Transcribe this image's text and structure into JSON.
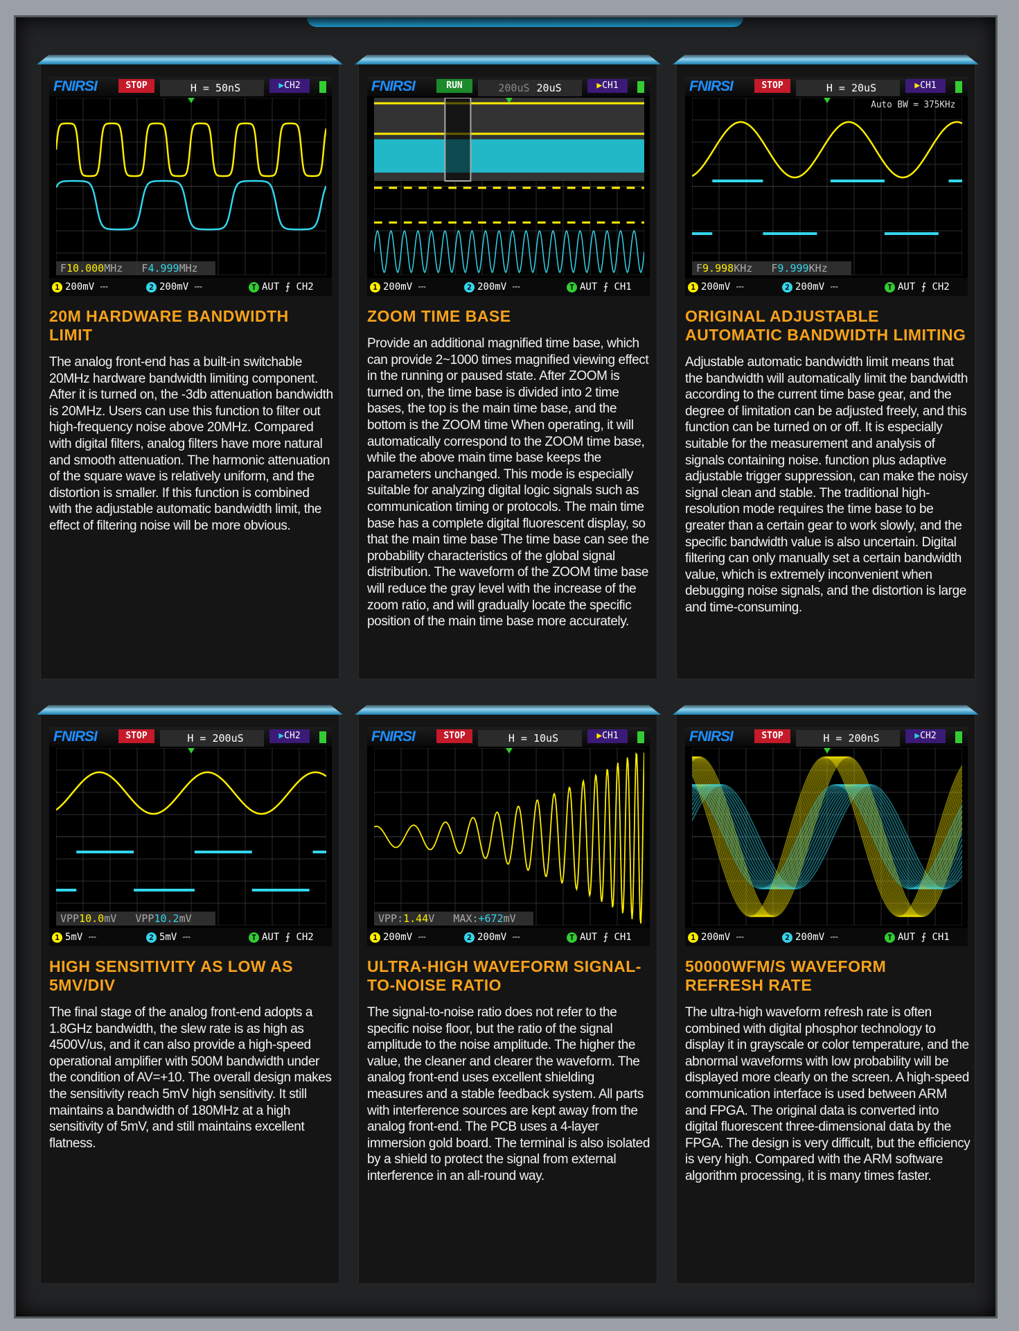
{
  "colors": {
    "accent": "#f7a21b",
    "ch1": "#ffee00",
    "ch2": "#33d6ec",
    "logo": "#1e8fff",
    "stop": "#c41a2a",
    "run": "#1c8a2a"
  },
  "panels": [
    {
      "scope": {
        "logo": "FNIRSI",
        "status": "STOP",
        "timebase": "H = 50nS",
        "timebase_main": "",
        "channel": "CH2",
        "meas1_label": "F",
        "meas1_value": "10.000",
        "meas1_unit": "MHz",
        "meas2_label": "F",
        "meas2_value": "4.999",
        "meas2_unit": "MHz",
        "ch1_scale": "200mV ⎓",
        "ch2_scale": "200mV ⎓",
        "trigger": "AUT ⨍ CH2",
        "note": ""
      },
      "title": "20M hardware bandwidth limit",
      "body": "The analog front-end has a built-in switchable 20MHz hardware bandwidth limiting component. After it is turned on, the -3db attenuation bandwidth is 20MHz. Users can use this function to filter out high-frequency noise above 20MHz. Compared with digital filters, analog filters have more natural and smooth attenuation. The harmonic attenuation of the square wave is relatively uniform, and the distortion is smaller. If this function is combined with the adjustable automatic bandwidth limit, the effect of filtering noise will be more obvious."
    },
    {
      "scope": {
        "logo": "FNIRSI",
        "status": "RUN",
        "timebase": "20uS",
        "timebase_main": "200uS",
        "channel": "CH1",
        "meas1_label": "",
        "meas1_value": "",
        "meas1_unit": "",
        "meas2_label": "",
        "meas2_value": "",
        "meas2_unit": "",
        "ch1_scale": "200mV ⎓",
        "ch2_scale": "200mV ⎓",
        "trigger": "AUT ⨍ CH1",
        "note": ""
      },
      "title": "Zoom time base",
      "body": "Provide an additional magnified time base, which can provide 2~1000 times magnified viewing effect in the running or paused state. After ZOOM is turned on, the time base is divided into 2 time bases, the top is the main time base, and the bottom is the ZOOM time When operating, it will automatically correspond to the ZOOM time base, while the above main time base keeps the parameters unchanged. This mode is especially suitable for analyzing digital logic signals such as communication timing or protocols. The main time base has a complete digital fluorescent display, so that the main time base The time base can see the probability characteristics of the global signal distribution. The waveform of the ZOOM time base will reduce the gray level with the increase of the zoom ratio, and will gradually locate the specific position of the main time base more accurately."
    },
    {
      "scope": {
        "logo": "FNIRSI",
        "status": "STOP",
        "timebase": "H = 20uS",
        "timebase_main": "",
        "channel": "CH1",
        "meas1_label": "F",
        "meas1_value": "9.998",
        "meas1_unit": "KHz",
        "meas2_label": "F",
        "meas2_value": "9.999",
        "meas2_unit": "KHz",
        "ch1_scale": "200mV ⎓",
        "ch2_scale": "200mV ⎓",
        "trigger": "AUT ⨍ CH2",
        "note": "Auto BW = 375KHz"
      },
      "title": "Original adjustable automatic bandwidth limiting",
      "body": "Adjustable automatic bandwidth limit means that the bandwidth will automatically limit the bandwidth according to the current time base gear, and the degree of limitation can be adjusted freely, and this function can be turned on or off. It is especially suitable for the measurement and analysis of signals containing noise. function plus adaptive adjustable trigger suppression, can make the noisy signal clean and stable. The traditional high-resolution mode requires the time base to be greater than a certain gear to work slowly, and the specific bandwidth value is also uncertain. Digital filtering can only manually set a certain bandwidth value, which is extremely inconvenient when debugging noise signals, and the distortion is large and time-consuming."
    },
    {
      "scope": {
        "logo": "FNIRSI",
        "status": "STOP",
        "timebase": "H = 200uS",
        "timebase_main": "",
        "channel": "CH2",
        "meas1_label": "VPP",
        "meas1_value": "10.0",
        "meas1_unit": "mV",
        "meas2_label": "VPP",
        "meas2_value": "10.2",
        "meas2_unit": "mV",
        "ch1_scale": "5mV  ⎓",
        "ch2_scale": "5mV  ⎓",
        "trigger": "AUT ⨍ CH2",
        "note": ""
      },
      "title": "High sensitivity as low as 5mV/div",
      "body": "The final stage of the analog front-end adopts a 1.8GHz bandwidth, the slew rate is as high as 4500V/us, and it can also provide a high-speed operational amplifier with 500M bandwidth under the condition of AV=+10. The overall design makes the sensitivity reach 5mV high sensitivity. It still maintains a bandwidth of 180MHz at a high sensitivity of 5mV, and still maintains excellent flatness."
    },
    {
      "scope": {
        "logo": "FNIRSI",
        "status": "STOP",
        "timebase": "H = 10uS",
        "timebase_main": "",
        "channel": "CH1",
        "meas1_label": "VPP:",
        "meas1_value": "1.44",
        "meas1_unit": "V",
        "meas2_label": "MAX:",
        "meas2_value": "+672",
        "meas2_unit": "mV",
        "ch1_scale": "200mV ⎓",
        "ch2_scale": "200mV ⎓",
        "trigger": "AUT ⨍ CH1",
        "note": ""
      },
      "title": "Ultra-high waveform signal-to-noise ratio",
      "body": "The signal-to-noise ratio does not refer to the specific noise floor, but the ratio of the signal amplitude to the noise amplitude. The higher the value, the cleaner and clearer the waveform. The analog front-end uses excellent shielding measures and a stable feedback system. All parts with interference sources are kept away from the analog front-end. The PCB uses a 4-layer immersion gold board. The terminal is also isolated by a shield to protect the signal from external interference in an all-round way."
    },
    {
      "scope": {
        "logo": "FNIRSI",
        "status": "STOP",
        "timebase": "H = 200nS",
        "timebase_main": "",
        "channel": "CH2",
        "meas1_label": "",
        "meas1_value": "",
        "meas1_unit": "",
        "meas2_label": "",
        "meas2_value": "",
        "meas2_unit": "",
        "ch1_scale": "200mV ⎓",
        "ch2_scale": "200mV ⎓",
        "trigger": "AUT ⨍ CH1",
        "note": ""
      },
      "title": "50000wfm/s waveform refresh rate",
      "body": "The ultra-high waveform refresh rate is often combined with digital phosphor technology to display it in grayscale or color temperature, and the abnormal waveforms with low probability will be displayed more clearly on the screen. A high-speed communication interface is used between ARM and FPGA. The original data is converted into digital fluorescent three-dimensional data by the FPGA. The design is very difficult, but the efficiency is very high. Compared with the ARM software algorithm processing, it is many times faster."
    }
  ]
}
